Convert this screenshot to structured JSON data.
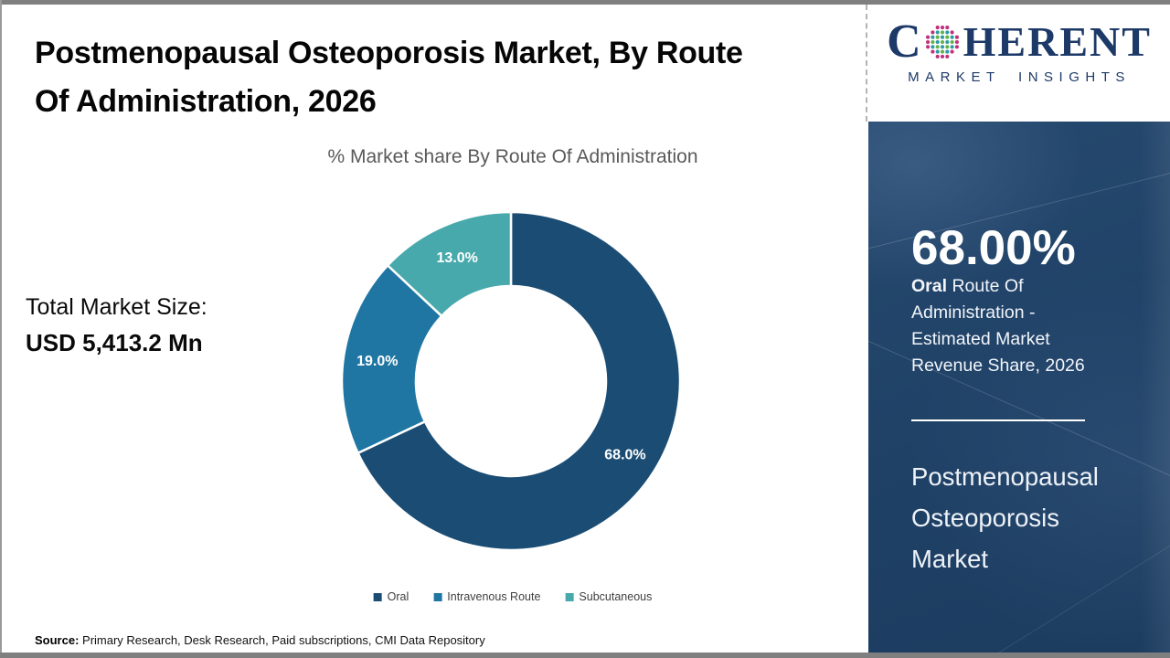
{
  "title": {
    "full": "Postmenopausal Osteoporosis Market, By Route Of Administration, 2026",
    "lines": [
      "Postmenopausal Osteoporosis Market, By Route",
      "Of Administration, 2026"
    ]
  },
  "market_size": {
    "label": "Total Market Size:",
    "value": "USD 5,413.2 Mn"
  },
  "source": {
    "label": "Source:",
    "text": " Primary Research, Desk Research, Paid subscriptions, CMI Data Repository"
  },
  "logo": {
    "prefix": "C",
    "suffix": "HERENT",
    "tagline": "MARKET INSIGHTS",
    "navy": "#1d3968",
    "dot_outer": "#c0307c",
    "dot_mid": "#2e9aa8",
    "dot_inner": "#64b346"
  },
  "sidebar": {
    "stat_value": "68.00%",
    "stat_label_bold": "Oral",
    "stat_label_rest": " Route Of Administration - Estimated Market Revenue Share, 2026",
    "panel_title": "Postmenopausal Osteoporosis Market",
    "bg_color": "#1f4166"
  },
  "chart_data": {
    "type": "pie",
    "donut": true,
    "title": "% Market share By Route Of Administration",
    "categories": [
      "Oral",
      "Intravenous Route",
      "Subcutaneous"
    ],
    "values": [
      68.0,
      19.0,
      13.0
    ],
    "unit": "%",
    "start_angle_deg": 0,
    "direction": "clockwise",
    "legend_position": "bottom",
    "segments": [
      {
        "label": "Oral",
        "value": 68.0,
        "display": "68.0%",
        "color": "#1b4d74"
      },
      {
        "label": "Intravenous Route",
        "value": 19.0,
        "display": "19.0%",
        "color": "#2076a3"
      },
      {
        "label": "Subcutaneous",
        "value": 13.0,
        "display": "13.0%",
        "color": "#47a9ab"
      }
    ]
  }
}
